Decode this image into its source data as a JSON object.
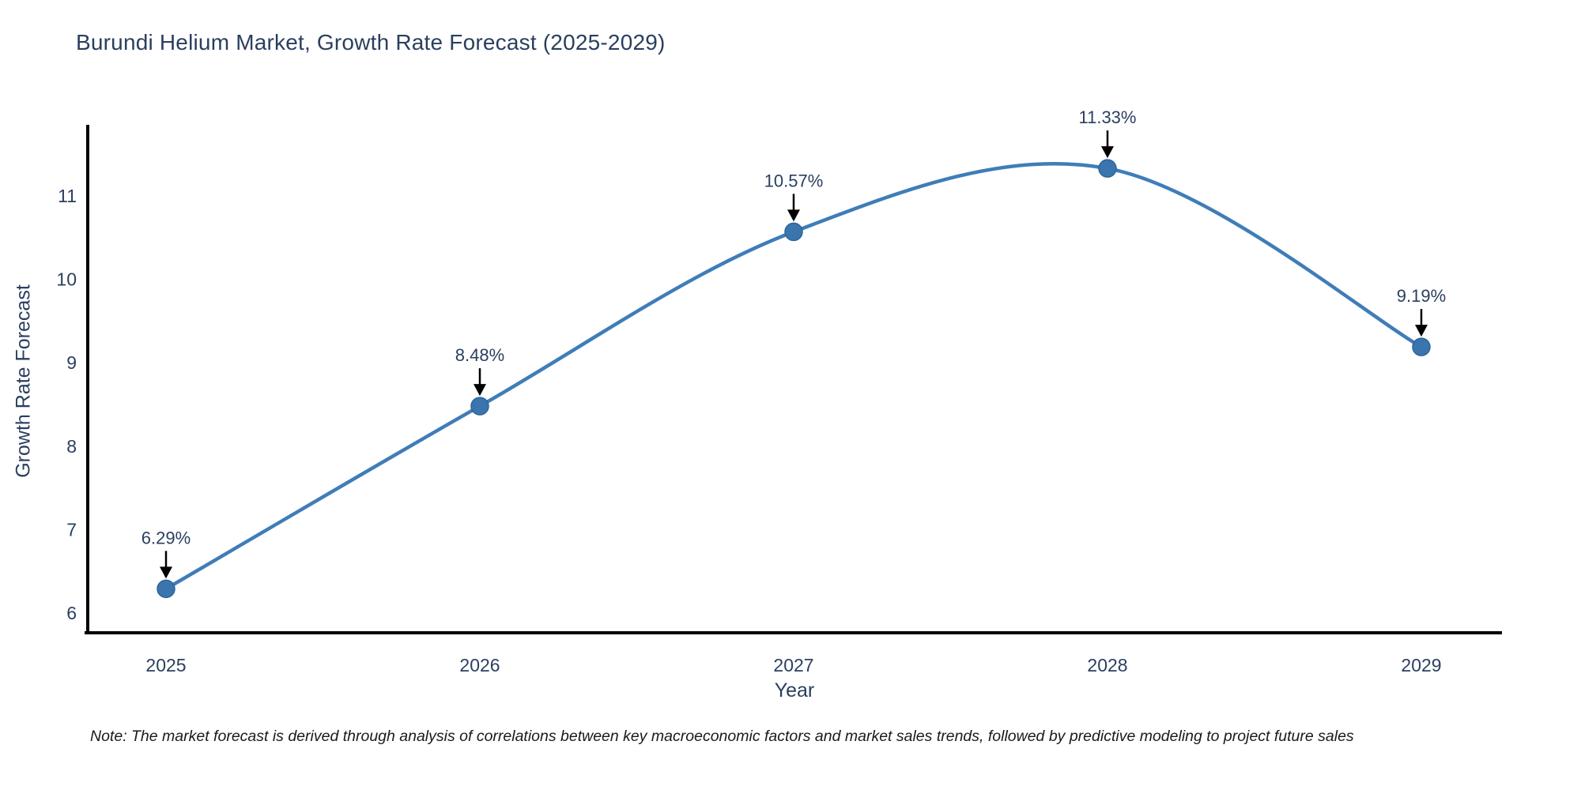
{
  "title": "Burundi Helium Market, Growth Rate Forecast (2025-2029)",
  "note": "Note: The market forecast is derived through analysis of correlations between key macroeconomic factors and market sales trends, followed by predictive modeling to project future sales",
  "colors": {
    "line": "#3f7db8",
    "marker_fill": "#3a76ad",
    "marker_edge": "#2f6496",
    "axis": "#000000",
    "tick_text": "#2a3f5f",
    "annotation_text": "#2a3f5f",
    "arrow": "#000000",
    "title_text": "#2a3f5f",
    "note_text": "#1a1a1a",
    "background": "#ffffff"
  },
  "chart_data": {
    "type": "line",
    "title": "Burundi Helium Market, Growth Rate Forecast (2025-2029)",
    "xlabel": "Year",
    "ylabel": "Growth Rate Forecast",
    "x": [
      2025,
      2026,
      2027,
      2028,
      2029
    ],
    "x_ticks": [
      "2025",
      "2026",
      "2027",
      "2028",
      "2029"
    ],
    "y_ticks": [
      6,
      7,
      8,
      9,
      10,
      11
    ],
    "ylim": [
      5.76,
      11.85
    ],
    "series": [
      {
        "name": "Growth Rate Forecast",
        "values": [
          6.29,
          8.48,
          10.57,
          11.33,
          9.19
        ]
      }
    ],
    "point_labels": [
      "6.29%",
      "8.48%",
      "10.57%",
      "11.33%",
      "9.19%"
    ],
    "line_shape": "spline",
    "marker": "circle",
    "grid": false,
    "legend_visible": false
  }
}
